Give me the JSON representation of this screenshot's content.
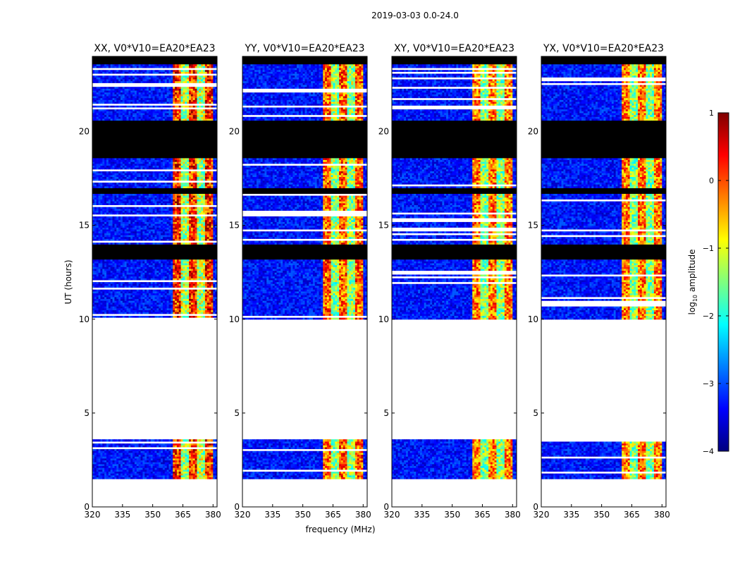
{
  "figure": {
    "suptitle": "2019-03-03 0.0-24.0",
    "xlabel": "frequency (MHz)",
    "ylabel": "UT (hours)",
    "colorbar_label_prefix": "log",
    "colorbar_label_sub": "10",
    "colorbar_label_suffix": " amplitude"
  },
  "chart_data": {
    "type": "heatmap",
    "title": "2019-03-03 0.0-24.0",
    "xlabel": "frequency (MHz)",
    "ylabel": "UT (hours)",
    "xlim": [
      320,
      382
    ],
    "ylim": [
      0,
      24
    ],
    "xticks": [
      320,
      335,
      350,
      365,
      380
    ],
    "yticks": [
      0,
      5,
      10,
      15,
      20
    ],
    "colorbar": {
      "label": "log10 amplitude",
      "range": [
        -4,
        1
      ],
      "ticks": [
        1,
        0,
        -1,
        -2,
        -3,
        -4
      ],
      "tick_labels": [
        "1",
        "0",
        "−1",
        "−2",
        "−3",
        "−4"
      ],
      "colormap": "jet",
      "colors": [
        "#00007f",
        "#0000ff",
        "#007fff",
        "#00ffff",
        "#7fff7f",
        "#ffff00",
        "#ff7f00",
        "#ff0000",
        "#7f0000"
      ]
    },
    "panels": [
      {
        "title": "XX, V0*V10=EA20*EA23",
        "pol": "XX",
        "level_scale": 1.0
      },
      {
        "title": "YY, V0*V10=EA20*EA23",
        "pol": "YY",
        "level_scale": 0.9
      },
      {
        "title": "XY, V0*V10=EA20*EA23",
        "pol": "XY",
        "level_scale": 0.85
      },
      {
        "title": "YX, V0*V10=EA20*EA23",
        "pol": "YX",
        "level_scale": 0.85
      }
    ],
    "data_bands_hours": [
      [
        0.0,
        0.05
      ],
      [
        1.55,
        3.65
      ],
      [
        10.0,
        24.0
      ]
    ],
    "no_data_bands_hours": [
      [
        0.05,
        1.55
      ],
      [
        3.65,
        10.0
      ]
    ],
    "flagged_bands_hours": [
      [
        13.2,
        14.0
      ],
      [
        16.7,
        17.0
      ],
      [
        18.6,
        20.6
      ],
      [
        23.6,
        24.0
      ]
    ],
    "rfi_band_mhz": [
      360,
      380
    ],
    "background_log_amplitude": -3.3,
    "rfi_log_amplitude_range": [
      -2.5,
      0.5
    ]
  }
}
